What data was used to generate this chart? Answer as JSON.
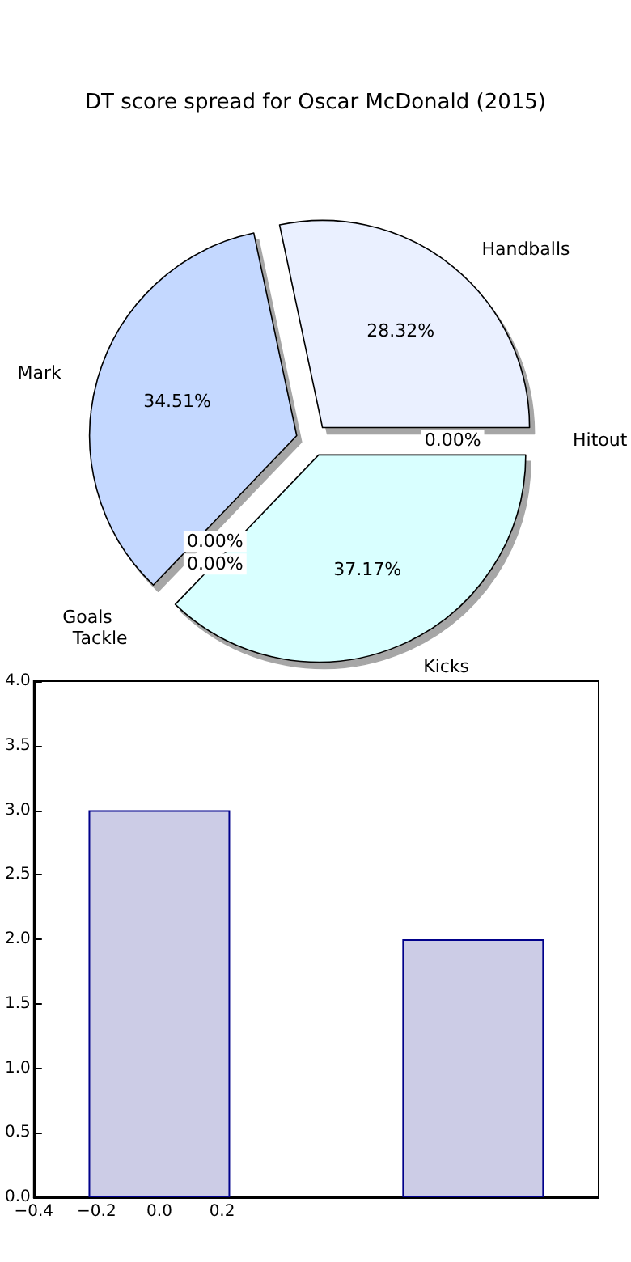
{
  "chart_data": [
    {
      "type": "pie",
      "title": "DT score spread for Oscar McDonald (2015)",
      "categories": [
        "Handballs",
        "Mark",
        "Goals",
        "Tackle",
        "Kicks",
        "Hitout"
      ],
      "values": [
        28.32,
        34.51,
        0,
        0,
        37.17,
        0
      ],
      "value_labels": [
        "28.32%",
        "34.51%",
        "0.00%",
        "0.00%",
        "37.17%",
        "0.00%"
      ],
      "colors": [
        "#eaf0ff",
        "#c4d8ff",
        "#d0d0ff",
        "#e0e0f0",
        "#d9ffff",
        "#f0f0ff"
      ]
    },
    {
      "type": "bar",
      "x": [
        0,
        1
      ],
      "values": [
        3,
        2
      ],
      "color": "#cccce6",
      "xlim": [
        -0.4,
        1.4
      ],
      "xticks": [
        {
          "value": -0.4,
          "label": "−0.4"
        },
        {
          "value": -0.2,
          "label": "−0.2"
        },
        {
          "value": 0,
          "label": "0.0"
        },
        {
          "value": 0.2,
          "label": "0.2"
        }
      ],
      "ylim": [
        0,
        4
      ],
      "yticks": [
        {
          "value": 0,
          "label": "0.0"
        },
        {
          "value": 0.5,
          "label": "0.5"
        },
        {
          "value": 1,
          "label": "1.0"
        },
        {
          "value": 1.5,
          "label": "1.5"
        },
        {
          "value": 2,
          "label": "2.0"
        },
        {
          "value": 2.5,
          "label": "2.5"
        },
        {
          "value": 3,
          "label": "3.0"
        },
        {
          "value": 3.5,
          "label": "3.5"
        },
        {
          "value": 4,
          "label": "4.0"
        }
      ],
      "grid": false
    }
  ]
}
